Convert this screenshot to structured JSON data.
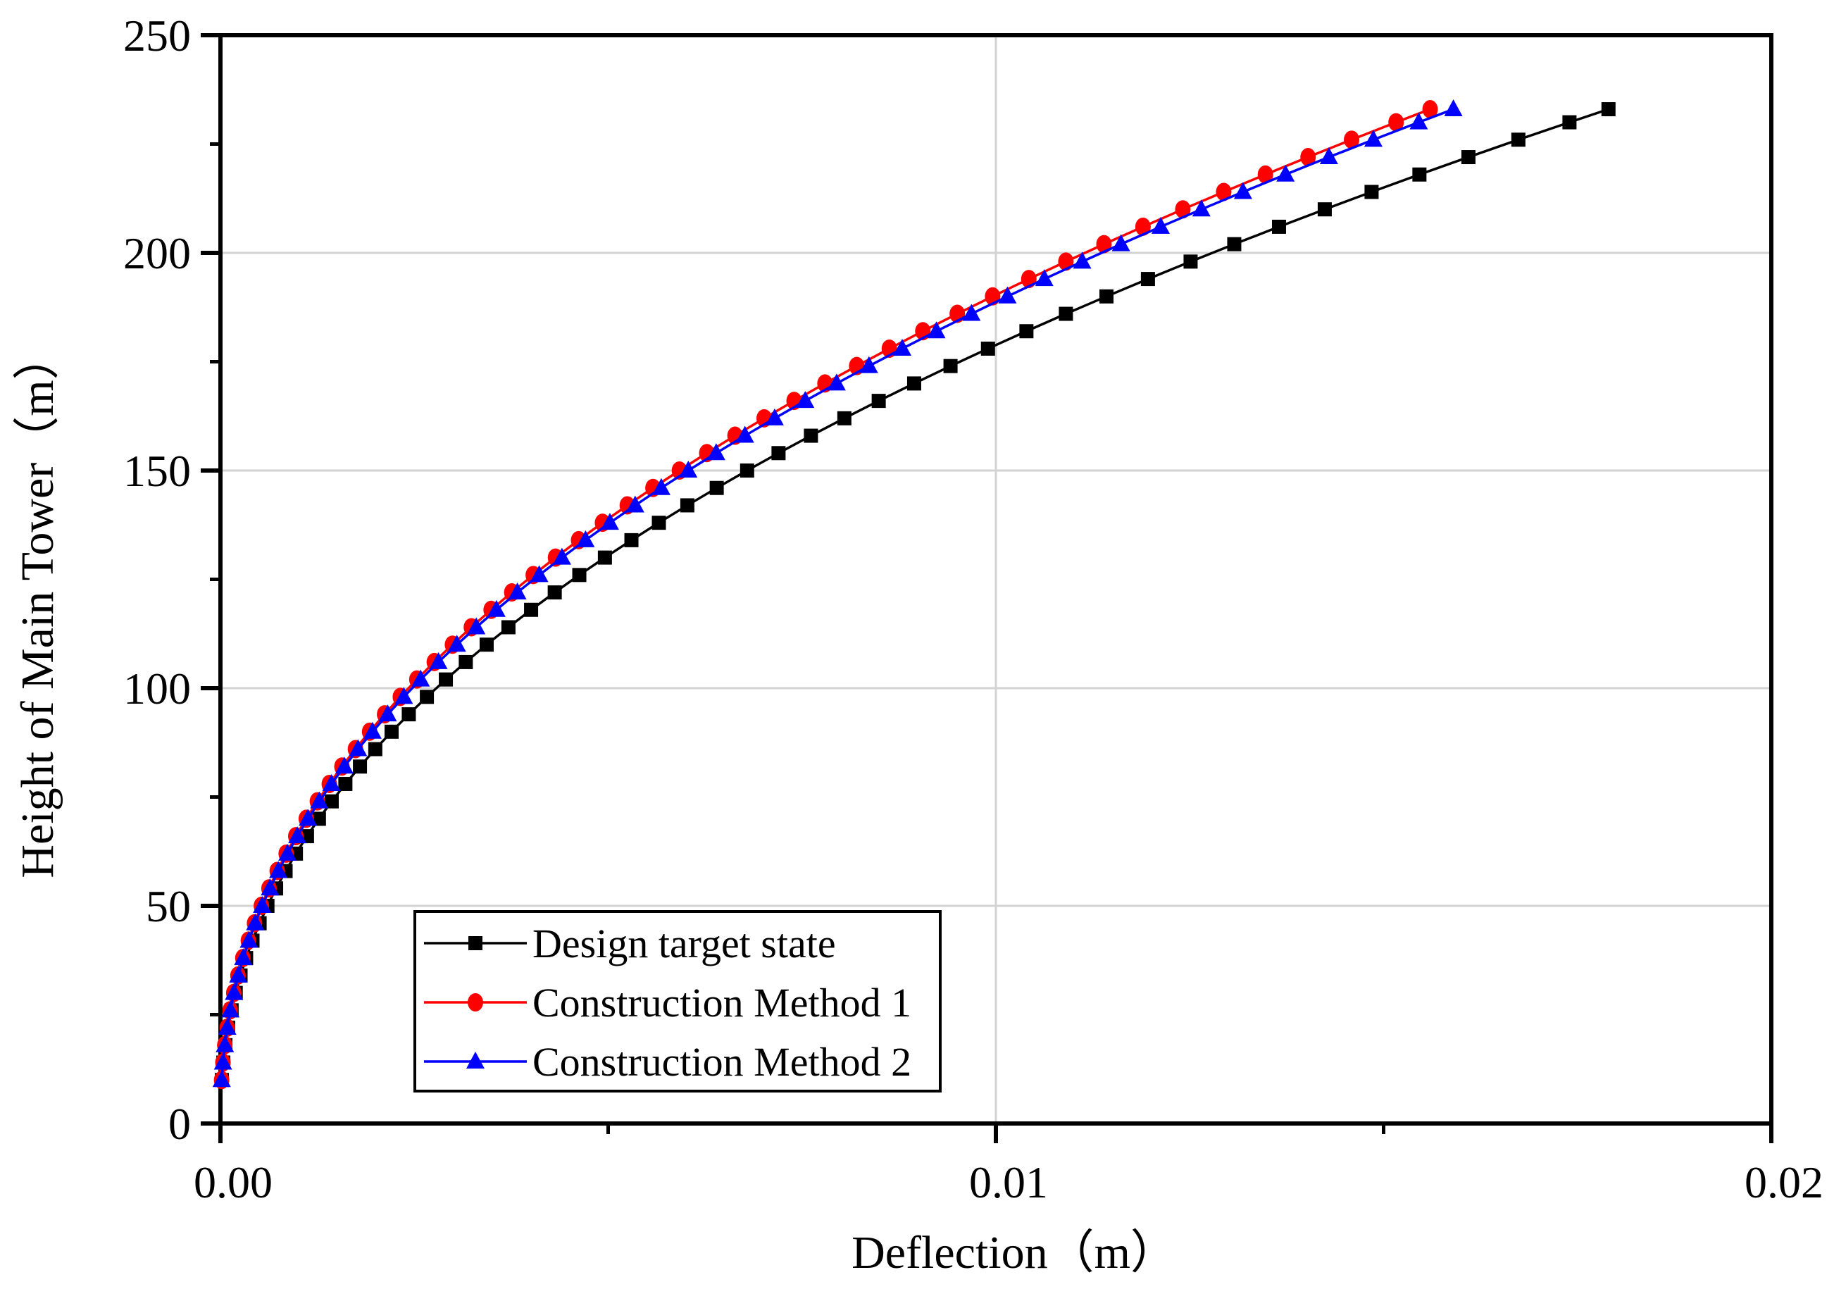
{
  "chart_data": {
    "type": "line",
    "title": "",
    "xlabel": "Deflection（m）",
    "ylabel": "Height of Main Tower（m）",
    "xlim": [
      0,
      0.02
    ],
    "ylim": [
      0,
      250
    ],
    "x_ticks": {
      "major": [
        0,
        0.01,
        0.02
      ],
      "minor": [
        0.005,
        0.015
      ],
      "labels": [
        "0.00",
        "0.01",
        "0.02"
      ]
    },
    "y_ticks": {
      "major": [
        0,
        50,
        100,
        150,
        200,
        250
      ],
      "minor": [
        25,
        75,
        125,
        175,
        225
      ],
      "labels": [
        "0",
        "50",
        "100",
        "150",
        "200",
        "250"
      ]
    },
    "grid": {
      "horizontal": [
        50,
        100,
        150,
        200
      ],
      "vertical": [
        0.01
      ],
      "color": "#d3d3d3"
    },
    "legend": {
      "position": "lower-left",
      "border_color": "#000000"
    },
    "heights": [
      10,
      14,
      18,
      22,
      26,
      30,
      34,
      38,
      42,
      46,
      50,
      54,
      58,
      62,
      66,
      70,
      74,
      78,
      82,
      86,
      90,
      94,
      98,
      102,
      106,
      110,
      114,
      118,
      122,
      126,
      130,
      134,
      138,
      142,
      146,
      150,
      154,
      158,
      162,
      166,
      170,
      174,
      178,
      182,
      186,
      190,
      194,
      198,
      202,
      206,
      210,
      214,
      218,
      222,
      226,
      230,
      233
    ],
    "series": [
      {
        "name": "Design target state",
        "color": "#000000",
        "marker": "square",
        "deflections": [
          1.8e-05,
          3.7e-05,
          6.4e-05,
          9.9e-05,
          0.000144,
          0.000197,
          0.000259,
          0.000331,
          0.000413,
          0.000505,
          0.000606,
          0.000718,
          0.00084,
          0.000973,
          0.001116,
          0.00127,
          0.001435,
          0.001611,
          0.001799,
          0.001997,
          0.002207,
          0.002429,
          0.002662,
          0.002907,
          0.003164,
          0.003433,
          0.003714,
          0.004006,
          0.004311,
          0.004628,
          0.004958,
          0.0053,
          0.005654,
          0.006021,
          0.0064,
          0.006792,
          0.007197,
          0.007615,
          0.008046,
          0.008489,
          0.008946,
          0.009415,
          0.009898,
          0.010394,
          0.010903,
          0.011426,
          0.011961,
          0.012511,
          0.013074,
          0.013651,
          0.014241,
          0.014845,
          0.015462,
          0.016094,
          0.016738,
          0.017397,
          0.0179
        ]
      },
      {
        "name": "Construction Method 1",
        "color": "#ff0000",
        "marker": "circle",
        "deflections": [
          1.5e-05,
          3.2e-05,
          5.6e-05,
          8.7e-05,
          0.000125,
          0.000172,
          0.000226,
          0.000289,
          0.00036,
          0.00044,
          0.000528,
          0.000626,
          0.000732,
          0.000848,
          0.000972,
          0.001107,
          0.00125,
          0.001404,
          0.001567,
          0.001741,
          0.001924,
          0.002117,
          0.00232,
          0.002533,
          0.002758,
          0.002992,
          0.003236,
          0.003491,
          0.003757,
          0.004034,
          0.004321,
          0.004619,
          0.004927,
          0.005247,
          0.005578,
          0.005919,
          0.006272,
          0.006636,
          0.007012,
          0.007398,
          0.007796,
          0.008205,
          0.008626,
          0.009058,
          0.009502,
          0.009958,
          0.010425,
          0.010903,
          0.011394,
          0.011897,
          0.012411,
          0.012938,
          0.013476,
          0.014026,
          0.014587,
          0.015161,
          0.0156
        ]
      },
      {
        "name": "Construction Method 2",
        "color": "#0000ff",
        "marker": "triangle",
        "deflections": [
          1.6e-05,
          3.3e-05,
          5.7e-05,
          8.8e-05,
          0.000128,
          0.000175,
          0.00023,
          0.000294,
          0.000367,
          0.000448,
          0.000538,
          0.000638,
          0.000746,
          0.000864,
          0.000991,
          0.001128,
          0.001274,
          0.001431,
          0.001598,
          0.001774,
          0.001961,
          0.002157,
          0.002365,
          0.002582,
          0.002811,
          0.003049,
          0.003299,
          0.003559,
          0.003829,
          0.004111,
          0.004404,
          0.004708,
          0.005022,
          0.005348,
          0.005685,
          0.006033,
          0.006393,
          0.006764,
          0.007147,
          0.007541,
          0.007946,
          0.008363,
          0.008792,
          0.009233,
          0.009685,
          0.010149,
          0.010625,
          0.011113,
          0.011613,
          0.012125,
          0.01265,
          0.013187,
          0.013735,
          0.014295,
          0.014868,
          0.015453,
          0.0159
        ]
      }
    ]
  }
}
